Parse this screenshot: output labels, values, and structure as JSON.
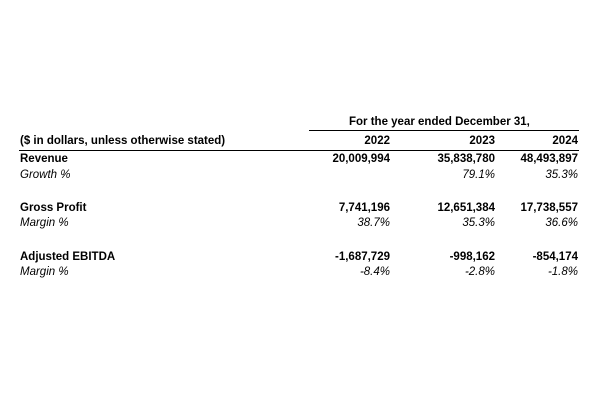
{
  "table": {
    "period_header": "For the year ended December 31,",
    "units_note": "($ in dollars, unless otherwise stated)",
    "years": [
      "2022",
      "2023",
      "2024"
    ],
    "rows": [
      {
        "label": "Revenue",
        "values": [
          "20,009,994",
          "35,838,780",
          "48,493,897"
        ]
      },
      {
        "label": "Growth %",
        "values": [
          "",
          "79.1%",
          "35.3%"
        ]
      },
      {
        "label": "Gross Profit",
        "values": [
          "7,741,196",
          "12,651,384",
          "17,738,557"
        ]
      },
      {
        "label": "Margin %",
        "values": [
          "38.7%",
          "35.3%",
          "36.6%"
        ]
      },
      {
        "label": "Adjusted EBITDA",
        "values": [
          "-1,687,729",
          "-998,162",
          "-854,174"
        ]
      },
      {
        "label": "Margin %",
        "values": [
          "-8.4%",
          "-2.8%",
          "-1.8%"
        ]
      }
    ]
  }
}
